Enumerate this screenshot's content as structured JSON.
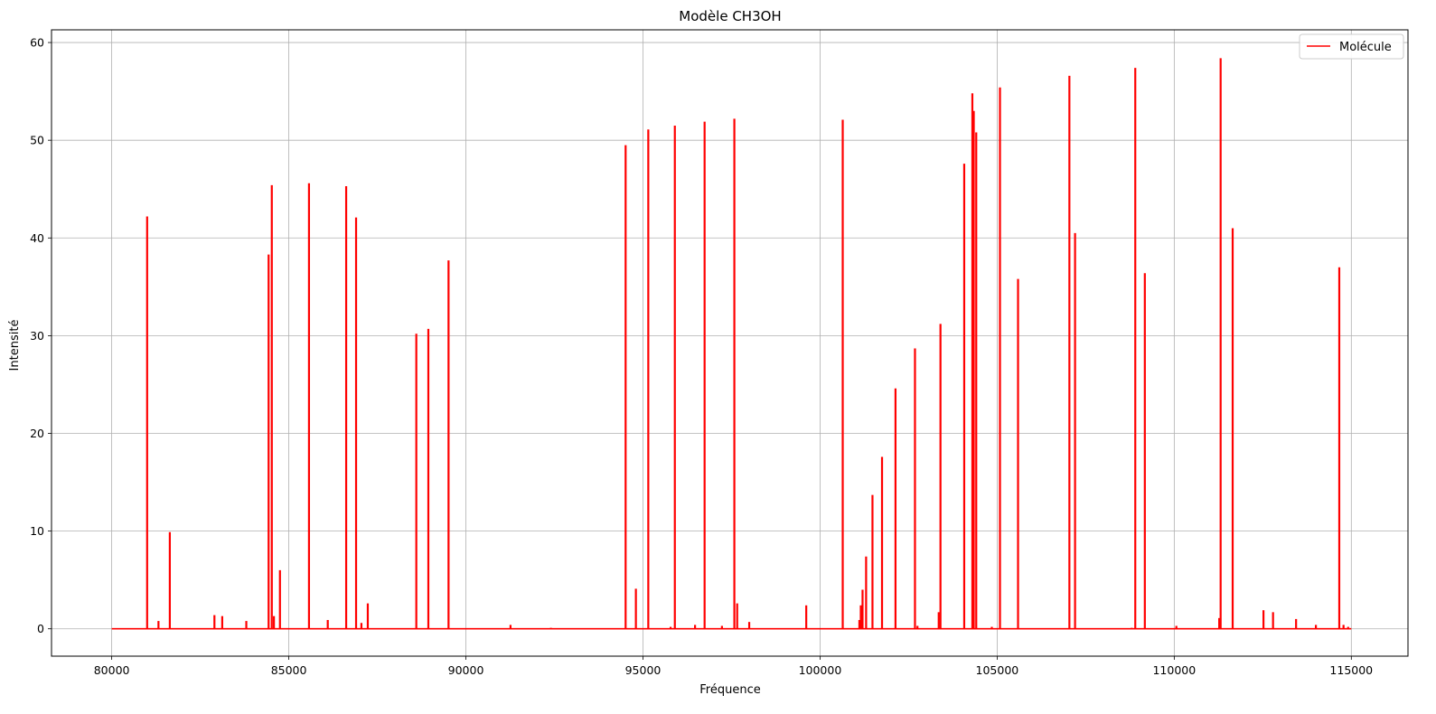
{
  "chart_data": {
    "type": "line",
    "title": "Modèle CH3OH",
    "xlabel": "Fréquence",
    "ylabel": "Intensité",
    "xlim": [
      78300,
      116600
    ],
    "ylim": [
      -2.8,
      61.3
    ],
    "xticks": [
      80000,
      85000,
      90000,
      95000,
      100000,
      105000,
      110000,
      115000
    ],
    "yticks": [
      0,
      10,
      20,
      30,
      40,
      50,
      60
    ],
    "grid": true,
    "legend_position": "top-right",
    "x_range": [
      80000,
      115000
    ],
    "series": [
      {
        "name": "Molécule",
        "color": "#ff0000",
        "lines": [
          [
            81000,
            42.2
          ],
          [
            81320,
            0.8
          ],
          [
            81640,
            9.9
          ],
          [
            82900,
            1.4
          ],
          [
            83120,
            1.3
          ],
          [
            83800,
            0.8
          ],
          [
            84430,
            38.3
          ],
          [
            84520,
            45.4
          ],
          [
            84580,
            1.3
          ],
          [
            84750,
            6.0
          ],
          [
            85570,
            45.6
          ],
          [
            86100,
            0.9
          ],
          [
            86620,
            45.3
          ],
          [
            86900,
            42.1
          ],
          [
            87050,
            0.6
          ],
          [
            87230,
            2.6
          ],
          [
            88600,
            30.2
          ],
          [
            88940,
            30.7
          ],
          [
            89510,
            37.7
          ],
          [
            91260,
            0.4
          ],
          [
            92400,
            0.1
          ],
          [
            94510,
            49.5
          ],
          [
            94800,
            4.1
          ],
          [
            95150,
            51.1
          ],
          [
            95780,
            0.2
          ],
          [
            95900,
            51.5
          ],
          [
            96470,
            0.4
          ],
          [
            96740,
            51.9
          ],
          [
            97230,
            0.3
          ],
          [
            97580,
            52.2
          ],
          [
            97660,
            2.6
          ],
          [
            98000,
            0.7
          ],
          [
            99610,
            2.4
          ],
          [
            100640,
            52.1
          ],
          [
            101110,
            0.9
          ],
          [
            101150,
            2.4
          ],
          [
            101200,
            4.0
          ],
          [
            101300,
            7.4
          ],
          [
            101480,
            13.7
          ],
          [
            101750,
            17.6
          ],
          [
            102130,
            24.6
          ],
          [
            102680,
            28.7
          ],
          [
            102750,
            0.3
          ],
          [
            103350,
            1.7
          ],
          [
            103400,
            31.2
          ],
          [
            104070,
            47.6
          ],
          [
            104300,
            54.8
          ],
          [
            104340,
            53.0
          ],
          [
            104410,
            50.8
          ],
          [
            104850,
            0.2
          ],
          [
            105080,
            55.4
          ],
          [
            105590,
            35.8
          ],
          [
            107040,
            56.6
          ],
          [
            107200,
            40.5
          ],
          [
            108800,
            0.1
          ],
          [
            108900,
            57.4
          ],
          [
            109170,
            36.4
          ],
          [
            110060,
            0.3
          ],
          [
            111270,
            1.1
          ],
          [
            111310,
            58.4
          ],
          [
            111650,
            41.0
          ],
          [
            112520,
            1.9
          ],
          [
            112790,
            1.7
          ],
          [
            113440,
            1.0
          ],
          [
            114000,
            0.4
          ],
          [
            114660,
            37.0
          ],
          [
            114780,
            0.4
          ],
          [
            114910,
            0.2
          ]
        ]
      }
    ]
  }
}
